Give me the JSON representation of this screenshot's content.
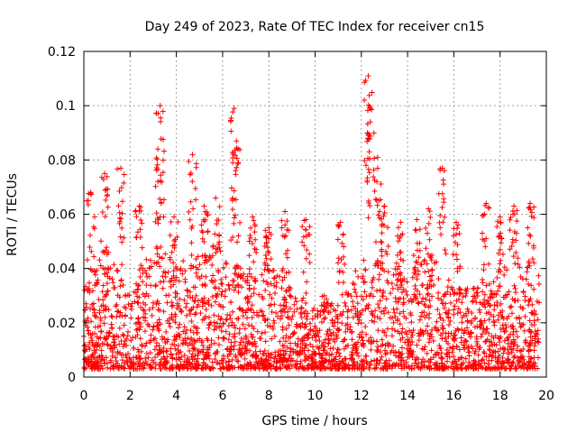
{
  "chart_data": {
    "type": "scatter",
    "title": "Day 249 of 2023, Rate Of TEC Index for receiver cn15",
    "xlabel": "GPS time / hours",
    "ylabel": "ROTI / TECUs",
    "xlim": [
      0,
      20
    ],
    "ylim": [
      0,
      0.12
    ],
    "xticks": [
      0,
      2,
      4,
      6,
      8,
      10,
      12,
      14,
      16,
      18,
      20
    ],
    "yticks": [
      0,
      0.02,
      0.04,
      0.06,
      0.08,
      0.1,
      0.12
    ],
    "xtick_labels": [
      "0",
      "2",
      "4",
      "6",
      "8",
      "10",
      "12",
      "14",
      "16",
      "18",
      "20"
    ],
    "ytick_labels": [
      "0",
      "0.02",
      "0.04",
      "0.06",
      "0.08",
      "0.1",
      "0.12"
    ],
    "grid": true,
    "marker": "+",
    "color": "#ff0000",
    "data_range_hours": [
      0,
      19.7
    ],
    "peaks": [
      {
        "x": 0.3,
        "y": 0.068
      },
      {
        "x": 0.9,
        "y": 0.075
      },
      {
        "x": 1.6,
        "y": 0.077
      },
      {
        "x": 2.4,
        "y": 0.063
      },
      {
        "x": 3.2,
        "y": 0.084
      },
      {
        "x": 3.3,
        "y": 0.1
      },
      {
        "x": 3.9,
        "y": 0.059
      },
      {
        "x": 4.7,
        "y": 0.082
      },
      {
        "x": 5.2,
        "y": 0.063
      },
      {
        "x": 5.7,
        "y": 0.066
      },
      {
        "x": 6.5,
        "y": 0.099
      },
      {
        "x": 6.6,
        "y": 0.087
      },
      {
        "x": 7.3,
        "y": 0.059
      },
      {
        "x": 8.0,
        "y": 0.055
      },
      {
        "x": 8.7,
        "y": 0.061
      },
      {
        "x": 9.6,
        "y": 0.058
      },
      {
        "x": 10.4,
        "y": 0.03
      },
      {
        "x": 11.1,
        "y": 0.057
      },
      {
        "x": 12.3,
        "y": 0.111
      },
      {
        "x": 12.4,
        "y": 0.099
      },
      {
        "x": 12.7,
        "y": 0.081
      },
      {
        "x": 13.0,
        "y": 0.063
      },
      {
        "x": 13.7,
        "y": 0.057
      },
      {
        "x": 14.4,
        "y": 0.058
      },
      {
        "x": 14.9,
        "y": 0.062
      },
      {
        "x": 15.5,
        "y": 0.077
      },
      {
        "x": 16.1,
        "y": 0.057
      },
      {
        "x": 17.4,
        "y": 0.064
      },
      {
        "x": 18.0,
        "y": 0.059
      },
      {
        "x": 18.6,
        "y": 0.063
      },
      {
        "x": 19.3,
        "y": 0.064
      }
    ],
    "baseline_envelope": [
      {
        "x": 0,
        "y": 0.03
      },
      {
        "x": 1,
        "y": 0.045
      },
      {
        "x": 2,
        "y": 0.03
      },
      {
        "x": 3,
        "y": 0.045
      },
      {
        "x": 4,
        "y": 0.04
      },
      {
        "x": 5,
        "y": 0.042
      },
      {
        "x": 6,
        "y": 0.045
      },
      {
        "x": 7,
        "y": 0.035
      },
      {
        "x": 8,
        "y": 0.04
      },
      {
        "x": 9,
        "y": 0.03
      },
      {
        "x": 10,
        "y": 0.022
      },
      {
        "x": 11,
        "y": 0.025
      },
      {
        "x": 12,
        "y": 0.04
      },
      {
        "x": 13,
        "y": 0.045
      },
      {
        "x": 14,
        "y": 0.035
      },
      {
        "x": 15,
        "y": 0.045
      },
      {
        "x": 16,
        "y": 0.03
      },
      {
        "x": 17,
        "y": 0.03
      },
      {
        "x": 18,
        "y": 0.038
      },
      {
        "x": 19,
        "y": 0.04
      },
      {
        "x": 19.7,
        "y": 0.035
      }
    ]
  }
}
